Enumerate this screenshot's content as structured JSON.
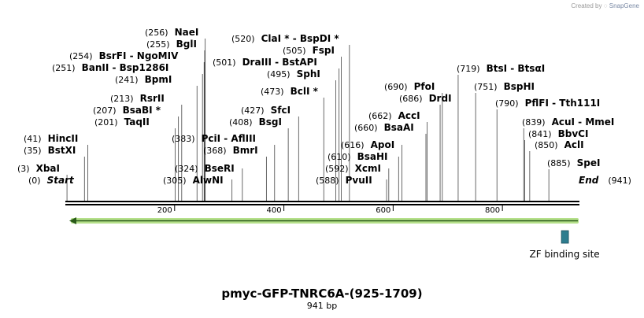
{
  "credit": {
    "prefix": "Created by",
    "brand": "SnapGene"
  },
  "map": {
    "title": "pmyc-GFP-TNRC6A-(925-1709)",
    "length_label": "941 bp",
    "total_bp": 941,
    "ruler_ticks": [
      {
        "bp": 200,
        "label": "200"
      },
      {
        "bp": 400,
        "label": "400"
      },
      {
        "bp": 600,
        "label": "600"
      },
      {
        "bp": 800,
        "label": "800"
      }
    ],
    "sites": [
      {
        "pos": 0,
        "pos_label": "(0)",
        "name": "Start"
      },
      {
        "pos": 3,
        "pos_label": "(3)",
        "name": "XbaI"
      },
      {
        "pos": 35,
        "pos_label": "(35)",
        "name": "BstXI"
      },
      {
        "pos": 41,
        "pos_label": "(41)",
        "name": "HincII"
      },
      {
        "pos": 201,
        "pos_label": "(201)",
        "name": "TaqII"
      },
      {
        "pos": 207,
        "pos_label": "(207)",
        "name": "BsaBI *"
      },
      {
        "pos": 213,
        "pos_label": "(213)",
        "name": "RsrII"
      },
      {
        "pos": 241,
        "pos_label": "(241)",
        "name": "BpmI"
      },
      {
        "pos": 251,
        "pos_label": "(251)",
        "name": "BanII  -  Bsp1286I"
      },
      {
        "pos": 254,
        "pos_label": "(254)",
        "name": "BsrFI  -  NgoMIV"
      },
      {
        "pos": 255,
        "pos_label": "(255)",
        "name": "BglI"
      },
      {
        "pos": 256,
        "pos_label": "(256)",
        "name": "NaeI"
      },
      {
        "pos": 305,
        "pos_label": "(305)",
        "name": "AlwNI"
      },
      {
        "pos": 324,
        "pos_label": "(324)",
        "name": "BseRI"
      },
      {
        "pos": 368,
        "pos_label": "(368)",
        "name": "BmrI"
      },
      {
        "pos": 383,
        "pos_label": "(383)",
        "name": "PciI  -  AflIII"
      },
      {
        "pos": 408,
        "pos_label": "(408)",
        "name": "BsgI"
      },
      {
        "pos": 427,
        "pos_label": "(427)",
        "name": "SfcI"
      },
      {
        "pos": 473,
        "pos_label": "(473)",
        "name": "BclI *"
      },
      {
        "pos": 495,
        "pos_label": "(495)",
        "name": "SphI"
      },
      {
        "pos": 501,
        "pos_label": "(501)",
        "name": "DraIII  -  BstAPI"
      },
      {
        "pos": 505,
        "pos_label": "(505)",
        "name": "FspI"
      },
      {
        "pos": 520,
        "pos_label": "(520)",
        "name": "ClaI *  -  BspDI *"
      },
      {
        "pos": 588,
        "pos_label": "(588)",
        "name": "PvuII"
      },
      {
        "pos": 592,
        "pos_label": "(592)",
        "name": "XcmI"
      },
      {
        "pos": 610,
        "pos_label": "(610)",
        "name": "BsaHI"
      },
      {
        "pos": 616,
        "pos_label": "(616)",
        "name": "ApoI"
      },
      {
        "pos": 660,
        "pos_label": "(660)",
        "name": "BsaAI"
      },
      {
        "pos": 662,
        "pos_label": "(662)",
        "name": "AccI"
      },
      {
        "pos": 686,
        "pos_label": "(686)",
        "name": "DrdI"
      },
      {
        "pos": 690,
        "pos_label": "(690)",
        "name": "PfoI"
      },
      {
        "pos": 719,
        "pos_label": "(719)",
        "name": "BtsI  -  BtsαI"
      },
      {
        "pos": 751,
        "pos_label": "(751)",
        "name": "BspHI"
      },
      {
        "pos": 790,
        "pos_label": "(790)",
        "name": "PflFI  -  Tth111I"
      },
      {
        "pos": 839,
        "pos_label": "(839)",
        "name": "AcuI  -  MmeI"
      },
      {
        "pos": 841,
        "pos_label": "(841)",
        "name": "BbvCI"
      },
      {
        "pos": 850,
        "pos_label": "(850)",
        "name": "AclI"
      },
      {
        "pos": 885,
        "pos_label": "(885)",
        "name": "SpeI"
      },
      {
        "pos": 941,
        "pos_label": "(941)",
        "name": "End"
      }
    ],
    "features": [
      {
        "name": "insert-arrow",
        "start": 1,
        "end": 941,
        "direction": "reverse",
        "color": "#b5e08a"
      },
      {
        "name": "ZF binding site",
        "start": 908,
        "end": 919,
        "color": "#2e7d8f"
      }
    ]
  }
}
